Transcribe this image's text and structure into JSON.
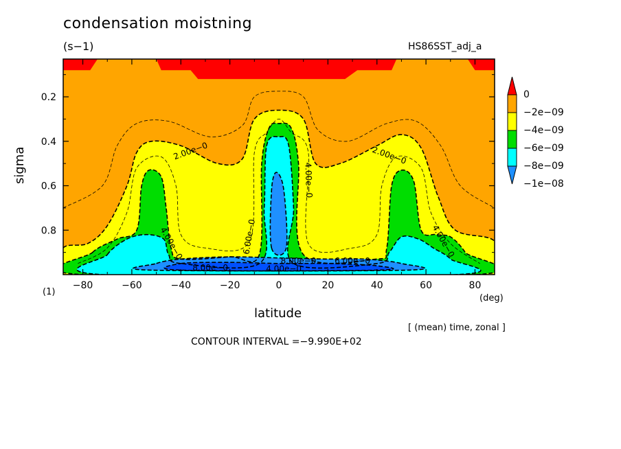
{
  "chart_data": {
    "type": "contour",
    "title": "condensation moistning",
    "units": "(s−1)",
    "run_name": "HS86SST_adj_a",
    "xlabel": "latitude",
    "ylabel": "sigma",
    "x_units": "(deg)",
    "y_units": "(1)",
    "xlim": [
      -88,
      88
    ],
    "ylim": [
      1.0,
      0.03
    ],
    "x_ticks": [
      -80,
      -60,
      -40,
      -20,
      0,
      20,
      40,
      60,
      80
    ],
    "y_ticks": [
      0.2,
      0.4,
      0.6,
      0.8
    ],
    "levels": [
      {
        "label": "0",
        "color": "#ff0000"
      },
      {
        "label": "−2e−09",
        "color": "#ffa500"
      },
      {
        "label": "−4e−09",
        "color": "#ffff00"
      },
      {
        "label": "−6e−09",
        "color": "#00dd00"
      },
      {
        "label": "−8e−09",
        "color": "#00ffff"
      },
      {
        "label": "−1e−08",
        "color": "#1e90ff"
      }
    ],
    "fill_colors": {
      "gt_0": "#ff0000",
      "c1": "#ffa500",
      "c2": "#ffff00",
      "c3": "#00dd00",
      "c4": "#00ffff",
      "c5": "#1e90ff",
      "c6": "#0050ff"
    },
    "contour_labels": [
      "2.00e−0",
      "2.00e−0",
      "4.00e−0",
      "4.00e−0",
      "4.00e−0",
      "6.00e−0",
      "6.00e−0",
      "8.00e−0",
      "8.00e−0",
      "4.00e−0"
    ],
    "regions": [
      {
        "level": "gt_0",
        "pts": [
          [
            -88,
            0.03
          ],
          [
            -88,
            0.08
          ],
          [
            -77,
            0.08
          ],
          [
            -74,
            0.03
          ]
        ]
      },
      {
        "level": "gt_0",
        "pts": [
          [
            -50,
            0.03
          ],
          [
            -48,
            0.08
          ],
          [
            -36,
            0.08
          ],
          [
            -33,
            0.12
          ],
          [
            27,
            0.12
          ],
          [
            32,
            0.08
          ],
          [
            46,
            0.08
          ],
          [
            48,
            0.03
          ]
        ]
      },
      {
        "level": "gt_0",
        "pts": [
          [
            77,
            0.03
          ],
          [
            80,
            0.08
          ],
          [
            88,
            0.08
          ],
          [
            88,
            0.03
          ]
        ]
      },
      {
        "level": "c2",
        "pts": [
          [
            -88,
            0.88
          ],
          [
            -78,
            0.86
          ],
          [
            -70,
            0.78
          ],
          [
            -62,
            0.6
          ],
          [
            -58,
            0.45
          ],
          [
            -52,
            0.4
          ],
          [
            -40,
            0.42
          ],
          [
            -25,
            0.5
          ],
          [
            -15,
            0.48
          ],
          [
            -10,
            0.3
          ],
          [
            0,
            0.26
          ],
          [
            10,
            0.3
          ],
          [
            15,
            0.5
          ],
          [
            25,
            0.5
          ],
          [
            40,
            0.42
          ],
          [
            50,
            0.37
          ],
          [
            58,
            0.43
          ],
          [
            65,
            0.65
          ],
          [
            72,
            0.8
          ],
          [
            88,
            0.85
          ],
          [
            88,
            1.0
          ],
          [
            -88,
            1.0
          ]
        ]
      },
      {
        "level": "c3",
        "pts": [
          [
            -76,
            0.9
          ],
          [
            -66,
            0.84
          ],
          [
            -58,
            0.8
          ],
          [
            -56,
            0.6
          ],
          [
            -53,
            0.53
          ],
          [
            -48,
            0.56
          ],
          [
            -46,
            0.7
          ],
          [
            -44,
            0.88
          ],
          [
            -40,
            0.93
          ],
          [
            -20,
            0.92
          ],
          [
            -8,
            0.91
          ],
          [
            -7,
            0.5
          ],
          [
            -4,
            0.34
          ],
          [
            0,
            0.32
          ],
          [
            5,
            0.34
          ],
          [
            8,
            0.5
          ],
          [
            10,
            0.91
          ],
          [
            40,
            0.93
          ],
          [
            44,
            0.88
          ],
          [
            46,
            0.6
          ],
          [
            50,
            0.53
          ],
          [
            55,
            0.58
          ],
          [
            58,
            0.8
          ],
          [
            64,
            0.82
          ],
          [
            70,
            0.83
          ],
          [
            76,
            0.9
          ],
          [
            80,
            1.0
          ],
          [
            -80,
            1.0
          ]
        ]
      },
      {
        "level": "c4",
        "pts": [
          [
            -70,
            0.91
          ],
          [
            -62,
            0.84
          ],
          [
            -54,
            0.82
          ],
          [
            -47,
            0.84
          ],
          [
            -45,
            0.91
          ],
          [
            -40,
            0.95
          ],
          [
            -8,
            0.95
          ],
          [
            -6,
            0.7
          ],
          [
            -5,
            0.42
          ],
          [
            0,
            0.38
          ],
          [
            4,
            0.42
          ],
          [
            6,
            0.7
          ],
          [
            6,
            0.95
          ],
          [
            40,
            0.95
          ],
          [
            45,
            0.9
          ],
          [
            50,
            0.83
          ],
          [
            57,
            0.84
          ],
          [
            63,
            0.88
          ],
          [
            70,
            0.93
          ],
          [
            72,
            1.0
          ],
          [
            -72,
            1.0
          ]
        ]
      },
      {
        "level": "c5",
        "pts": [
          [
            -3,
            0.88
          ],
          [
            -3,
            0.62
          ],
          [
            -1,
            0.54
          ],
          [
            2,
            0.62
          ],
          [
            3,
            0.88
          ]
        ]
      },
      {
        "level": "c5",
        "pts": [
          [
            -50,
            0.95
          ],
          [
            -40,
            0.93
          ],
          [
            -20,
            0.92
          ],
          [
            0,
            0.925
          ],
          [
            20,
            0.93
          ],
          [
            35,
            0.93
          ],
          [
            50,
            0.95
          ],
          [
            52,
            0.98
          ],
          [
            -52,
            0.98
          ]
        ]
      },
      {
        "level": "c6",
        "pts": [
          [
            -40,
            0.95
          ],
          [
            -20,
            0.945
          ],
          [
            0,
            0.95
          ],
          [
            20,
            0.95
          ],
          [
            40,
            0.96
          ],
          [
            40,
            0.98
          ],
          [
            -40,
            0.98
          ]
        ]
      }
    ]
  }
}
